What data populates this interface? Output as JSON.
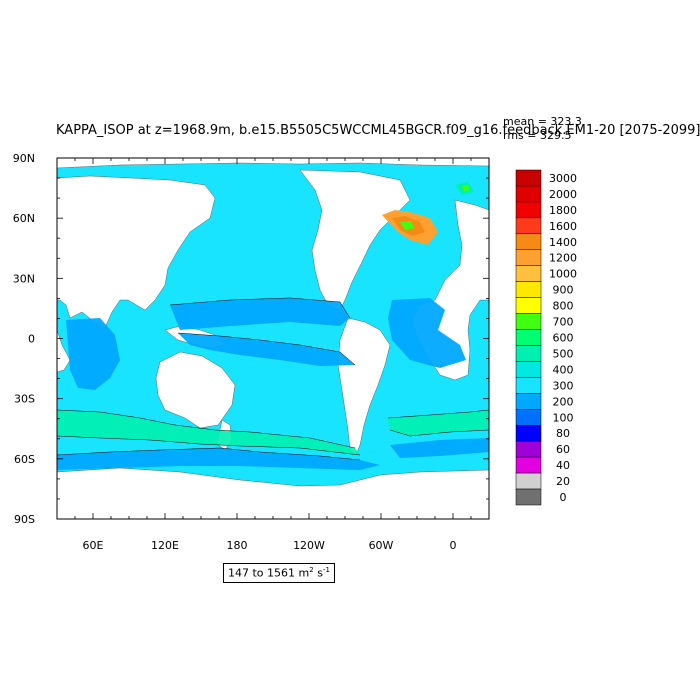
{
  "header": {
    "title": "KAPPA_ISOP at z=1968.9m, b.e15.B5505C5WCCML45BGCR.f09_g16.feedback.EM1-20 [2075-2099]",
    "mean_label": "mean = 323.3",
    "rms_label": "rms = 329.5"
  },
  "range": {
    "text": "147 to 1561 m",
    "unit_exp_1": "2",
    "unit_mid": " s",
    "unit_exp_2": "-1"
  },
  "chart_data": {
    "type": "heatmap",
    "title": "KAPPA_ISOP at z=1968.9m, b.e15.B5505C5WCCML45BGCR.f09_g16.feedback.EM1-20 [2075-2099]",
    "xlabel": "",
    "ylabel": "",
    "x_ticks": [
      "60E",
      "120E",
      "180",
      "120W",
      "60W",
      "0"
    ],
    "x_tick_values": [
      60,
      120,
      180,
      240,
      300,
      360
    ],
    "y_ticks": [
      "90N",
      "60N",
      "30N",
      "0",
      "30S",
      "60S",
      "90S"
    ],
    "y_tick_values": [
      90,
      60,
      30,
      0,
      -30,
      -60,
      -90
    ],
    "xlim": [
      30,
      390
    ],
    "ylim": [
      -90,
      90
    ],
    "colorbar_levels": [
      "3000",
      "2000",
      "1800",
      "1600",
      "1400",
      "1200",
      "1000",
      "900",
      "800",
      "700",
      "600",
      "500",
      "400",
      "300",
      "200",
      "100",
      "80",
      "60",
      "40",
      "20",
      "0"
    ],
    "colorbar_colors": [
      "#c80000",
      "#e00000",
      "#f00000",
      "#ff3a1a",
      "#f58a14",
      "#ffa030",
      "#ffc040",
      "#ffe800",
      "#ffff00",
      "#40ff10",
      "#00ff70",
      "#00f0b0",
      "#00e8e0",
      "#18e4ff",
      "#00a8ff",
      "#0070ff",
      "#0000ff",
      "#a000d8",
      "#e000e0",
      "#d0d0d0",
      "#707070"
    ],
    "mean": 323.3,
    "rms": 329.5,
    "min": 147,
    "max": 1561,
    "units": "m2 s-1",
    "dominant_level": "300-400"
  }
}
